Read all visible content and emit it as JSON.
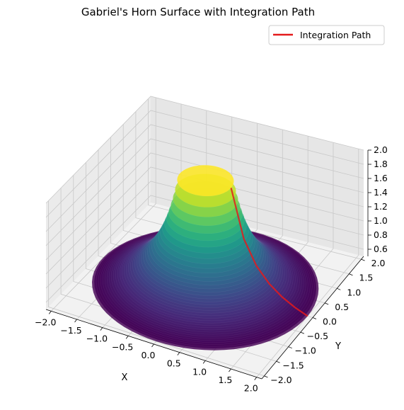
{
  "chart_data": {
    "type": "surface3d",
    "title": "Gabriel's Horn Surface with Integration Path",
    "xlabel": "X",
    "ylabel": "Y",
    "zlabel": "",
    "xlim": [
      -2.1,
      2.1
    ],
    "ylim": [
      -2.1,
      2.1
    ],
    "zlim": [
      0.5,
      2.0
    ],
    "x_ticks": [
      "−2.0",
      "−1.5",
      "−1.0",
      "−0.5",
      "0.0",
      "0.5",
      "1.0",
      "1.5",
      "2.0"
    ],
    "y_ticks": [
      "−2.0",
      "−1.5",
      "−1.0",
      "−0.5",
      "0.0",
      "0.5",
      "1.0",
      "1.5",
      "2.0"
    ],
    "z_ticks": [
      "0.6",
      "0.8",
      "1.0",
      "1.2",
      "1.4",
      "1.6",
      "1.8",
      "2.0"
    ],
    "grid": true,
    "legend_position": "top-right",
    "surface": {
      "equation": "z = 1/r",
      "r_range": [
        0.5,
        2.0
      ],
      "colormap": "viridis"
    },
    "series": [
      {
        "name": "Integration Path",
        "color": "#e41a1c",
        "points": [
          {
            "x": 0.5,
            "y": 0.0,
            "z": 2.0
          },
          {
            "x": 0.75,
            "y": 0.0,
            "z": 1.333
          },
          {
            "x": 1.0,
            "y": 0.0,
            "z": 1.0
          },
          {
            "x": 1.25,
            "y": 0.0,
            "z": 0.8
          },
          {
            "x": 1.5,
            "y": 0.0,
            "z": 0.667
          },
          {
            "x": 1.75,
            "y": 0.0,
            "z": 0.571
          },
          {
            "x": 2.0,
            "y": 0.0,
            "z": 0.5
          }
        ]
      }
    ]
  }
}
